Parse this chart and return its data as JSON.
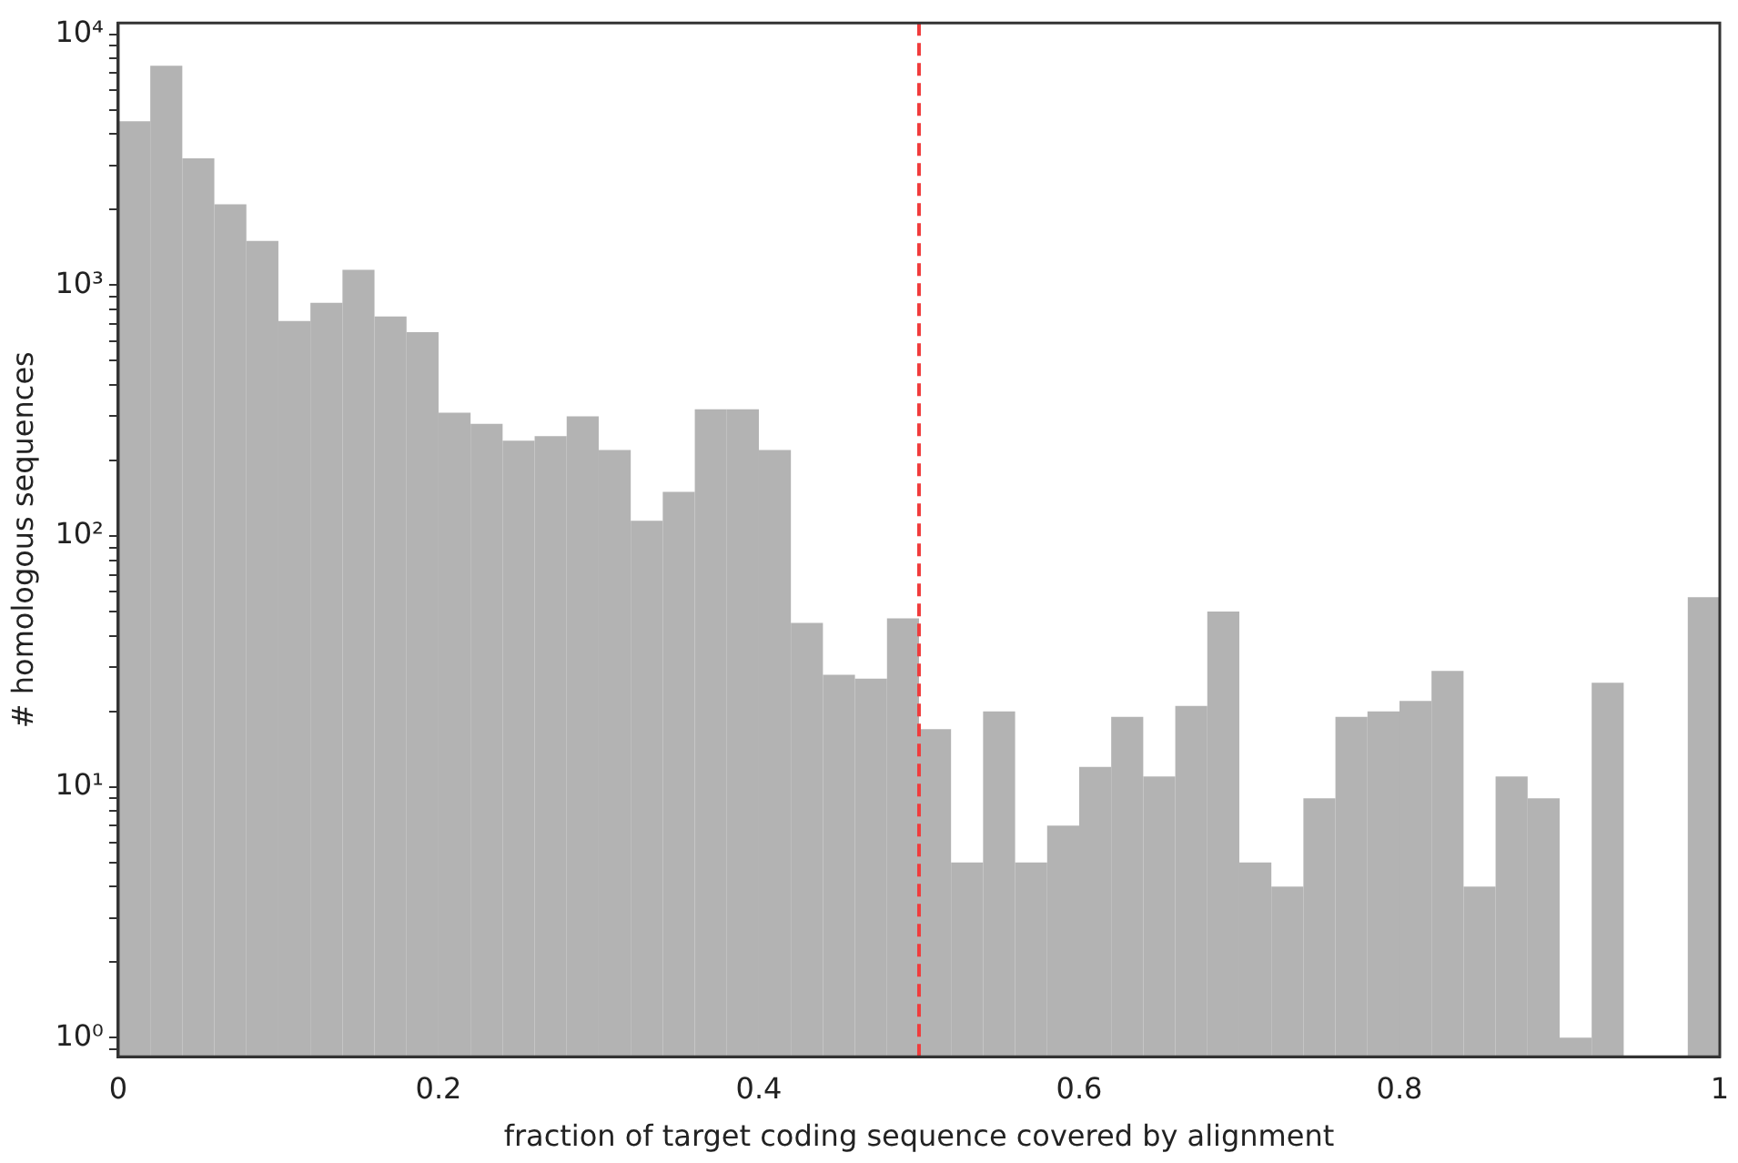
{
  "chart_data": {
    "type": "histogram",
    "xlabel": "fraction of target coding sequence covered by alignment",
    "ylabel": "# homologous sequences",
    "bins": [
      0,
      0.02,
      0.04,
      0.06,
      0.08,
      0.1,
      0.12,
      0.14,
      0.16,
      0.18,
      0.2,
      0.22,
      0.24,
      0.26,
      0.28,
      0.3,
      0.32,
      0.34,
      0.36,
      0.38,
      0.4,
      0.42,
      0.44,
      0.46,
      0.48,
      0.5,
      0.52,
      0.54,
      0.56,
      0.58,
      0.6,
      0.62,
      0.64,
      0.66,
      0.68,
      0.7,
      0.72,
      0.74,
      0.76,
      0.78,
      0.8,
      0.82,
      0.84,
      0.86,
      0.88,
      0.9,
      0.92,
      0.94,
      0.96,
      0.98,
      1
    ],
    "values": [
      4500,
      7500,
      3200,
      2100,
      1500,
      720,
      850,
      1150,
      750,
      650,
      310,
      280,
      240,
      250,
      300,
      220,
      115,
      150,
      320,
      320,
      220,
      45,
      28,
      27,
      47,
      17,
      5,
      20,
      5,
      7,
      12,
      19,
      11,
      21,
      50,
      5,
      4,
      9,
      19,
      20,
      22,
      29,
      4,
      11,
      9,
      1,
      26,
      null,
      null,
      57
    ],
    "color": "#b3b3b3",
    "log": "y",
    "grid": false,
    "xlim": [
      0,
      1
    ],
    "xticks": [
      0,
      {
        "value": 0.2,
        "label": "0.2"
      },
      {
        "value": 0.4,
        "label": "0.4"
      },
      {
        "value": 0.6,
        "label": "0.6"
      },
      {
        "value": 0.8,
        "label": "0.8"
      },
      1
    ],
    "ylim": [
      0.84,
      11100
    ],
    "yticks": [
      {
        "value": 0.9,
        "label": null
      },
      {
        "value": 1,
        "label": "10⁰"
      },
      {
        "value": 2,
        "label": null
      },
      {
        "value": 3,
        "label": null
      },
      {
        "value": 4,
        "label": null
      },
      {
        "value": 5,
        "label": null
      },
      {
        "value": 6,
        "label": null
      },
      {
        "value": 7,
        "label": null
      },
      {
        "value": 8,
        "label": null
      },
      {
        "value": 9,
        "label": null
      },
      {
        "value": 10,
        "label": "10¹"
      },
      {
        "value": 20,
        "label": null
      },
      {
        "value": 30,
        "label": null
      },
      {
        "value": 40,
        "label": null
      },
      {
        "value": 50,
        "label": null
      },
      {
        "value": 60,
        "label": null
      },
      {
        "value": 70,
        "label": null
      },
      {
        "value": 80,
        "label": null
      },
      {
        "value": 90,
        "label": null
      },
      {
        "value": 100,
        "label": "10²"
      },
      {
        "value": 200,
        "label": null
      },
      {
        "value": 300,
        "label": null
      },
      {
        "value": 400,
        "label": null
      },
      {
        "value": 500,
        "label": null
      },
      {
        "value": 600,
        "label": null
      },
      {
        "value": 700,
        "label": null
      },
      {
        "value": 800,
        "label": null
      },
      {
        "value": 900,
        "label": null
      },
      {
        "value": 1000,
        "label": "10³"
      },
      {
        "value": 2000,
        "label": null
      },
      {
        "value": 3000,
        "label": null
      },
      {
        "value": 4000,
        "label": null
      },
      {
        "value": 5000,
        "label": null
      },
      {
        "value": 6000,
        "label": null
      },
      {
        "value": 7000,
        "label": null
      },
      {
        "value": 8000,
        "label": null
      },
      {
        "value": 9000,
        "label": null
      },
      {
        "value": 10000,
        "label": "10⁴"
      }
    ],
    "ref_lines": [
      {
        "axis": "x",
        "value": 0.5,
        "color": "#f03c3c",
        "line_style": "dashed"
      }
    ]
  }
}
